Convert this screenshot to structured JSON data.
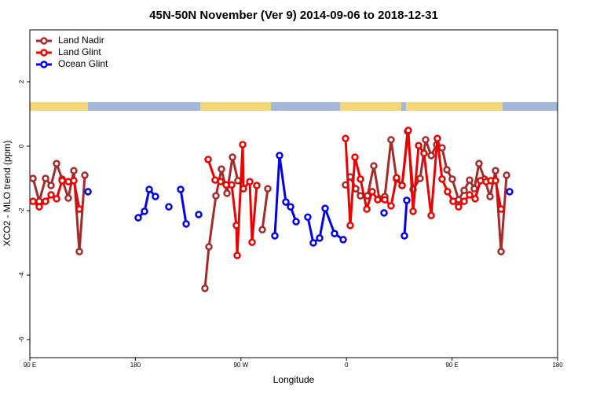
{
  "chart_data": {
    "type": "line",
    "title": "45N-50N November (Ver 9)   2014-09-06 to 2018-12-31",
    "x_label": "Longitude",
    "y_label": "XCO2 - MLO trend (ppm)",
    "xlim": [
      90,
      540
    ],
    "ylim": [
      -6.56,
      3.61
    ],
    "xticks": [
      {
        "value": 90,
        "label": "90 E"
      },
      {
        "value": 180,
        "label": "180"
      },
      {
        "value": 270,
        "label": "90 W"
      },
      {
        "value": 360,
        "label": "0"
      },
      {
        "value": 450,
        "label": "90 E"
      },
      {
        "value": 540,
        "label": "180"
      }
    ],
    "yticks": [
      -6,
      -4,
      -2,
      0,
      2
    ],
    "legend": "top-left",
    "series": [
      {
        "name": "Land Nadir",
        "color": "#a52a2a",
        "x": [
          92.7,
          98.0,
          103.4,
          108.1,
          112.8,
          117.5,
          122.8,
          127.5,
          132.2,
          136.9,
          null,
          239.3,
          242.7,
          248.7,
          253.4,
          258.1,
          262.8,
          267.4,
          null,
          288.2,
          292.9,
          null,
          359.2,
          363.2,
          367.9,
          371.9,
          377.9,
          383.3,
          388.0,
          392.7,
          398.0,
          402.7,
          407.4,
          412.1,
          416.8,
          422.8,
          427.5,
          432.2,
          436.9,
          441.5,
          445.6,
          450.2,
          455.6,
          460.3,
          465.0,
          469.0,
          473.0,
          477.7,
          482.4,
          487.1,
          491.8,
          496.5
        ],
        "values": [
          -1.0,
          -1.71,
          -1.0,
          -1.22,
          -0.54,
          -1.02,
          -1.61,
          -0.76,
          -3.27,
          -0.9,
          null,
          -4.41,
          -3.12,
          -1.54,
          -0.71,
          -1.46,
          -0.34,
          -1.07,
          null,
          -2.59,
          -1.32,
          null,
          -1.2,
          -0.95,
          -1.32,
          -1.54,
          -1.54,
          -0.61,
          -1.63,
          -1.56,
          0.2,
          -1.02,
          -1.22,
          0.46,
          -1.34,
          -1.0,
          0.2,
          -0.29,
          0.05,
          -0.05,
          -0.73,
          -1.02,
          -1.66,
          -1.37,
          -1.05,
          -1.32,
          -0.54,
          -1.02,
          -1.56,
          -0.76,
          -3.27,
          -0.9
        ]
      },
      {
        "name": "Land Glint",
        "color": "#ee0000",
        "x": [
          92.7,
          98.0,
          103.4,
          108.1,
          112.8,
          117.5,
          122.8,
          127.5,
          132.2,
          null,
          242.0,
          248.0,
          252.7,
          257.4,
          262.1,
          266.1,
          266.8,
          271.5,
          272.1,
          277.5,
          279.5,
          283.5,
          null,
          359.2,
          363.2,
          367.2,
          371.9,
          377.3,
          381.9,
          386.6,
          392.7,
          398.0,
          402.7,
          407.4,
          412.7,
          416.8,
          421.5,
          426.1,
          432.2,
          437.5,
          441.5,
          446.2,
          450.9,
          455.6,
          460.3,
          465.0,
          469.7,
          474.3,
          479.0,
          483.1,
          487.1,
          491.8
        ],
        "values": [
          -1.71,
          -1.88,
          -1.71,
          -1.51,
          -1.63,
          -1.07,
          -1.1,
          -1.07,
          -1.95,
          null,
          -0.41,
          -1.05,
          -1.1,
          -1.2,
          -1.2,
          -2.46,
          -3.39,
          0.05,
          -1.32,
          -1.1,
          -2.98,
          -1.22,
          null,
          0.24,
          -2.46,
          -0.34,
          -1.02,
          -1.95,
          -1.41,
          -1.66,
          -1.66,
          -1.85,
          -0.98,
          -1.22,
          0.49,
          -2.02,
          0.02,
          -0.22,
          -2.15,
          0.24,
          -1.02,
          -1.41,
          -1.71,
          -1.88,
          -1.71,
          -1.51,
          -1.63,
          -1.07,
          -1.1,
          -1.07,
          -1.07,
          -1.95
        ]
      },
      {
        "name": "Ocean Glint",
        "color": "#0000ee",
        "x": [
          139.6,
          null,
          182.4,
          187.8,
          191.8,
          197.1,
          null,
          208.5,
          null,
          218.6,
          223.3,
          null,
          234.0,
          null,
          298.9,
          302.9,
          308.3,
          312.3,
          317.0,
          null,
          327.0,
          331.7,
          337.1,
          341.8,
          349.8,
          357.2,
          null,
          392.0,
          null,
          409.4,
          411.4,
          null,
          499.1
        ],
        "values": [
          -1.41,
          null,
          -2.22,
          -2.02,
          -1.34,
          -1.56,
          null,
          -1.88,
          null,
          -1.34,
          -2.41,
          null,
          -2.12,
          null,
          -2.78,
          -0.29,
          -1.73,
          -1.88,
          -2.34,
          null,
          -2.2,
          -3.0,
          -2.85,
          -1.93,
          -2.71,
          -2.9,
          null,
          -2.07,
          null,
          -2.78,
          -1.68,
          null,
          -1.41
        ]
      }
    ]
  }
}
